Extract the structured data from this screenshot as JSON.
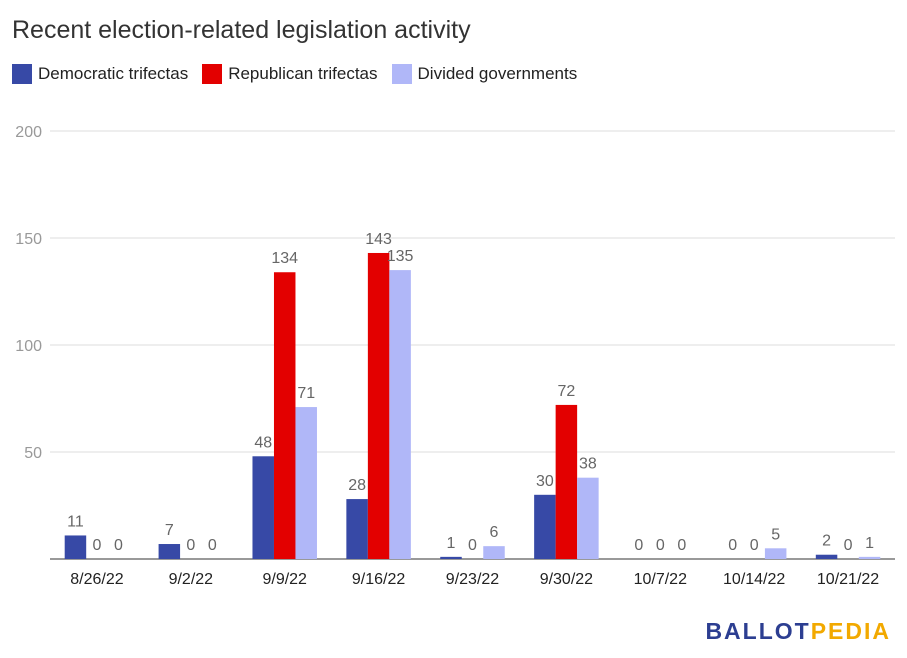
{
  "chart_data": {
    "type": "bar",
    "title": "Recent election-related legislation activity",
    "categories": [
      "8/26/22",
      "9/2/22",
      "9/9/22",
      "9/16/22",
      "9/23/22",
      "9/30/22",
      "10/7/22",
      "10/14/22",
      "10/21/22"
    ],
    "series": [
      {
        "name": "Democratic trifectas",
        "color": "#3749a6",
        "values": [
          11,
          7,
          48,
          28,
          1,
          30,
          0,
          0,
          2
        ]
      },
      {
        "name": "Republican trifectas",
        "color": "#e30000",
        "values": [
          0,
          0,
          134,
          143,
          0,
          72,
          0,
          0,
          0
        ]
      },
      {
        "name": "Divided governments",
        "color": "#b0b7f8",
        "values": [
          0,
          0,
          71,
          135,
          6,
          38,
          0,
          5,
          1
        ]
      }
    ],
    "yticks": [
      "0",
      "50",
      "100",
      "150",
      "200"
    ],
    "ylim": [
      0,
      200
    ],
    "grid": true,
    "legend_position": "top-left"
  },
  "logo": {
    "part1": "BALLOT",
    "part2": "PEDIA"
  }
}
